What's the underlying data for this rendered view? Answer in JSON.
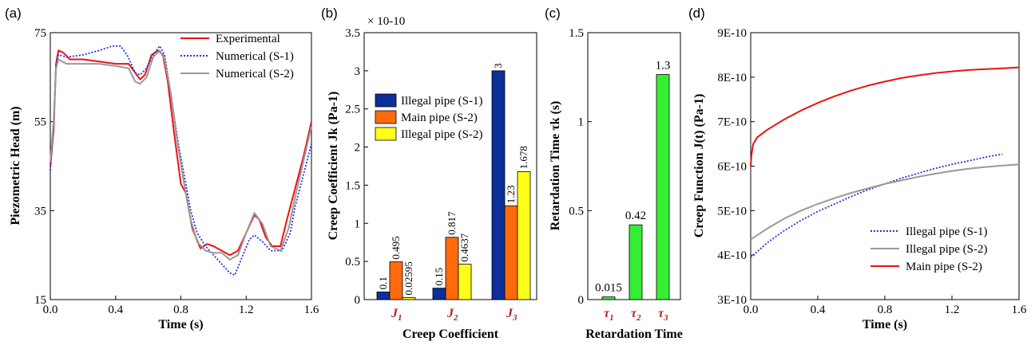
{
  "colors": {
    "experimental": "#ee1111",
    "num_s1": "#2233dd",
    "num_s2": "#999999",
    "illegal_s1": "#0d2f9a",
    "main_s2": "#ff6a0d",
    "illegal_s2": "#ffff1a",
    "retardation": "#33ee33",
    "category_label": "#b22222"
  },
  "chart_data": [
    {
      "panel": "(a)",
      "type": "line",
      "xlabel": "Time (s)",
      "ylabel": "Piezometric Head (m)",
      "xlim": [
        0,
        1.6
      ],
      "ylim": [
        15,
        75
      ],
      "xticks": [
        "0.0",
        "0.4",
        "0.8",
        "1.2",
        "1.6"
      ],
      "yticks": [
        "15",
        "35",
        "55",
        "75"
      ],
      "legend_position": "top-right",
      "series": [
        {
          "name": "Experimental",
          "color_key": "experimental",
          "dash": "solid",
          "points": [
            [
              0,
              45
            ],
            [
              0.02,
              53
            ],
            [
              0.035,
              68
            ],
            [
              0.05,
              71
            ],
            [
              0.08,
              70.5
            ],
            [
              0.12,
              69
            ],
            [
              0.2,
              69
            ],
            [
              0.3,
              68.5
            ],
            [
              0.4,
              68
            ],
            [
              0.48,
              68
            ],
            [
              0.52,
              66
            ],
            [
              0.55,
              64.5
            ],
            [
              0.58,
              65.5
            ],
            [
              0.62,
              70
            ],
            [
              0.66,
              71
            ],
            [
              0.69,
              70
            ],
            [
              0.72,
              64
            ],
            [
              0.76,
              52
            ],
            [
              0.8,
              41
            ],
            [
              0.83,
              39
            ],
            [
              0.87,
              31
            ],
            [
              0.92,
              26.5
            ],
            [
              0.96,
              27.5
            ],
            [
              1.0,
              27
            ],
            [
              1.05,
              26
            ],
            [
              1.1,
              25
            ],
            [
              1.15,
              26
            ],
            [
              1.2,
              30
            ],
            [
              1.25,
              34
            ],
            [
              1.28,
              33
            ],
            [
              1.32,
              29
            ],
            [
              1.36,
              27
            ],
            [
              1.41,
              27
            ],
            [
              1.45,
              33
            ],
            [
              1.5,
              40
            ],
            [
              1.55,
              47
            ],
            [
              1.6,
              55
            ]
          ]
        },
        {
          "name": "Numerical (S-1)",
          "color_key": "num_s1",
          "dash": "dotted",
          "points": [
            [
              0,
              44
            ],
            [
              0.02,
              54
            ],
            [
              0.035,
              68
            ],
            [
              0.05,
              70
            ],
            [
              0.1,
              69.5
            ],
            [
              0.2,
              70
            ],
            [
              0.3,
              71
            ],
            [
              0.38,
              72
            ],
            [
              0.43,
              72
            ],
            [
              0.47,
              70
            ],
            [
              0.52,
              66
            ],
            [
              0.55,
              65.5
            ],
            [
              0.59,
              67
            ],
            [
              0.63,
              70
            ],
            [
              0.67,
              72
            ],
            [
              0.7,
              70
            ],
            [
              0.74,
              61
            ],
            [
              0.78,
              51
            ],
            [
              0.82,
              43
            ],
            [
              0.86,
              35
            ],
            [
              0.9,
              30
            ],
            [
              0.95,
              27
            ],
            [
              1.0,
              25
            ],
            [
              1.05,
              23
            ],
            [
              1.1,
              21
            ],
            [
              1.13,
              20.5
            ],
            [
              1.18,
              25
            ],
            [
              1.22,
              28.5
            ],
            [
              1.25,
              29.5
            ],
            [
              1.3,
              28
            ],
            [
              1.35,
              26
            ],
            [
              1.42,
              26
            ],
            [
              1.47,
              30
            ],
            [
              1.5,
              36
            ],
            [
              1.55,
              43
            ],
            [
              1.6,
              50
            ]
          ]
        },
        {
          "name": "Numerical (S-2)",
          "color_key": "num_s2",
          "dash": "solid",
          "points": [
            [
              0,
              46
            ],
            [
              0.02,
              55
            ],
            [
              0.035,
              67
            ],
            [
              0.05,
              69
            ],
            [
              0.1,
              68
            ],
            [
              0.2,
              68
            ],
            [
              0.3,
              68
            ],
            [
              0.4,
              67.5
            ],
            [
              0.48,
              67
            ],
            [
              0.52,
              64
            ],
            [
              0.55,
              63.5
            ],
            [
              0.59,
              65
            ],
            [
              0.63,
              69.5
            ],
            [
              0.67,
              71
            ],
            [
              0.7,
              69
            ],
            [
              0.74,
              61
            ],
            [
              0.78,
              50
            ],
            [
              0.82,
              41
            ],
            [
              0.86,
              33
            ],
            [
              0.9,
              28
            ],
            [
              0.95,
              26
            ],
            [
              1.0,
              25.5
            ],
            [
              1.05,
              25.5
            ],
            [
              1.1,
              24
            ],
            [
              1.15,
              25
            ],
            [
              1.2,
              30
            ],
            [
              1.25,
              34.5
            ],
            [
              1.3,
              32
            ],
            [
              1.35,
              27
            ],
            [
              1.41,
              26
            ],
            [
              1.46,
              31
            ],
            [
              1.5,
              38
            ],
            [
              1.55,
              46
            ],
            [
              1.6,
              54
            ]
          ]
        }
      ]
    },
    {
      "panel": "(b)",
      "type": "bar",
      "xlabel": "Creep Coefficient",
      "ylabel": "Creep Coefficient Jk (Pa-1)",
      "multiplier": "× 10-10",
      "ylim": [
        0,
        3.5
      ],
      "yticks": [
        "0",
        "0.5",
        "1",
        "1.5",
        "2",
        "2.5",
        "3",
        "3.5"
      ],
      "categories": [
        "J",
        "J",
        "J"
      ],
      "category_subscripts": [
        "1",
        "2",
        "3"
      ],
      "legend_position": "center-left",
      "series": [
        {
          "name": "Illegal pipe (S-1)",
          "color_key": "illegal_s1",
          "values": [
            0.1,
            0.15,
            3
          ],
          "labels": [
            "0.1",
            "0.15",
            "3"
          ]
        },
        {
          "name": "Main pipe (S-2)",
          "color_key": "main_s2",
          "values": [
            0.495,
            0.817,
            1.23
          ],
          "labels": [
            "0.495",
            "0.817",
            "1.23"
          ]
        },
        {
          "name": "Illegal pipe (S-2)",
          "color_key": "illegal_s2",
          "values": [
            0.02595,
            0.4637,
            1.678
          ],
          "labels": [
            "0.02595",
            "0.4637",
            "1.678"
          ]
        }
      ]
    },
    {
      "panel": "(c)",
      "type": "bar",
      "xlabel": "Retardation Time",
      "ylabel": "Retardation Time τk (s)",
      "ylim": [
        0,
        1.5
      ],
      "yticks": [
        "0",
        "0.5",
        "1",
        "1.5"
      ],
      "categories": [
        "τ",
        "τ",
        "τ"
      ],
      "category_subscripts": [
        "1",
        "2",
        "3"
      ],
      "values": [
        0.015,
        0.42,
        1.265
      ],
      "labels": [
        "0.015",
        "0.42",
        "1.3"
      ],
      "color_key": "retardation"
    },
    {
      "panel": "(d)",
      "type": "line",
      "xlabel": "Time (s)",
      "ylabel": "Creep Function J(t) (Pa-1)",
      "xlim": [
        0,
        1.6
      ],
      "ylim": [
        3e-10,
        9e-10
      ],
      "xticks": [
        "0.0",
        "0.4",
        "0.8",
        "1.2",
        "1.6"
      ],
      "yticks": [
        "3E-10",
        "4E-10",
        "5E-10",
        "6E-10",
        "7E-10",
        "8E-10",
        "9E-10"
      ],
      "legend_position": "bottom-right",
      "series": [
        {
          "name": "Illegal pipe (S-1)",
          "color_key": "num_s1",
          "dash": "dotted",
          "points": [
            [
              0,
              3.95e-10
            ],
            [
              0.1,
              4.28e-10
            ],
            [
              0.2,
              4.55e-10
            ],
            [
              0.3,
              4.78e-10
            ],
            [
              0.4,
              4.98e-10
            ],
            [
              0.5,
              5.15e-10
            ],
            [
              0.6,
              5.32e-10
            ],
            [
              0.7,
              5.47e-10
            ],
            [
              0.8,
              5.6e-10
            ],
            [
              0.9,
              5.73e-10
            ],
            [
              1.0,
              5.84e-10
            ],
            [
              1.1,
              5.95e-10
            ],
            [
              1.2,
              6.04e-10
            ],
            [
              1.3,
              6.12e-10
            ],
            [
              1.4,
              6.2e-10
            ],
            [
              1.5,
              6.27e-10
            ]
          ]
        },
        {
          "name": "Illegal pipe (S-2)",
          "color_key": "num_s2",
          "dash": "solid",
          "points": [
            [
              0,
              4.35e-10
            ],
            [
              0.1,
              4.6e-10
            ],
            [
              0.2,
              4.82e-10
            ],
            [
              0.3,
              5e-10
            ],
            [
              0.4,
              5.15e-10
            ],
            [
              0.5,
              5.28e-10
            ],
            [
              0.6,
              5.4e-10
            ],
            [
              0.7,
              5.5e-10
            ],
            [
              0.8,
              5.6e-10
            ],
            [
              0.9,
              5.68e-10
            ],
            [
              1.0,
              5.76e-10
            ],
            [
              1.1,
              5.83e-10
            ],
            [
              1.2,
              5.89e-10
            ],
            [
              1.3,
              5.94e-10
            ],
            [
              1.4,
              5.98e-10
            ],
            [
              1.5,
              6.01e-10
            ],
            [
              1.6,
              6.04e-10
            ]
          ]
        },
        {
          "name": "Main pipe (S-2)",
          "color_key": "experimental",
          "dash": "solid",
          "points": [
            [
              0,
              6e-10
            ],
            [
              0.005,
              6.25e-10
            ],
            [
              0.015,
              6.5e-10
            ],
            [
              0.04,
              6.65e-10
            ],
            [
              0.1,
              6.82e-10
            ],
            [
              0.2,
              7.05e-10
            ],
            [
              0.3,
              7.25e-10
            ],
            [
              0.4,
              7.42e-10
            ],
            [
              0.5,
              7.57e-10
            ],
            [
              0.6,
              7.7e-10
            ],
            [
              0.7,
              7.81e-10
            ],
            [
              0.8,
              7.9e-10
            ],
            [
              0.9,
              7.98e-10
            ],
            [
              1.0,
              8.04e-10
            ],
            [
              1.1,
              8.09e-10
            ],
            [
              1.2,
              8.13e-10
            ],
            [
              1.3,
              8.16e-10
            ],
            [
              1.4,
              8.18e-10
            ],
            [
              1.5,
              8.2e-10
            ],
            [
              1.6,
              8.22e-10
            ]
          ]
        }
      ]
    }
  ]
}
